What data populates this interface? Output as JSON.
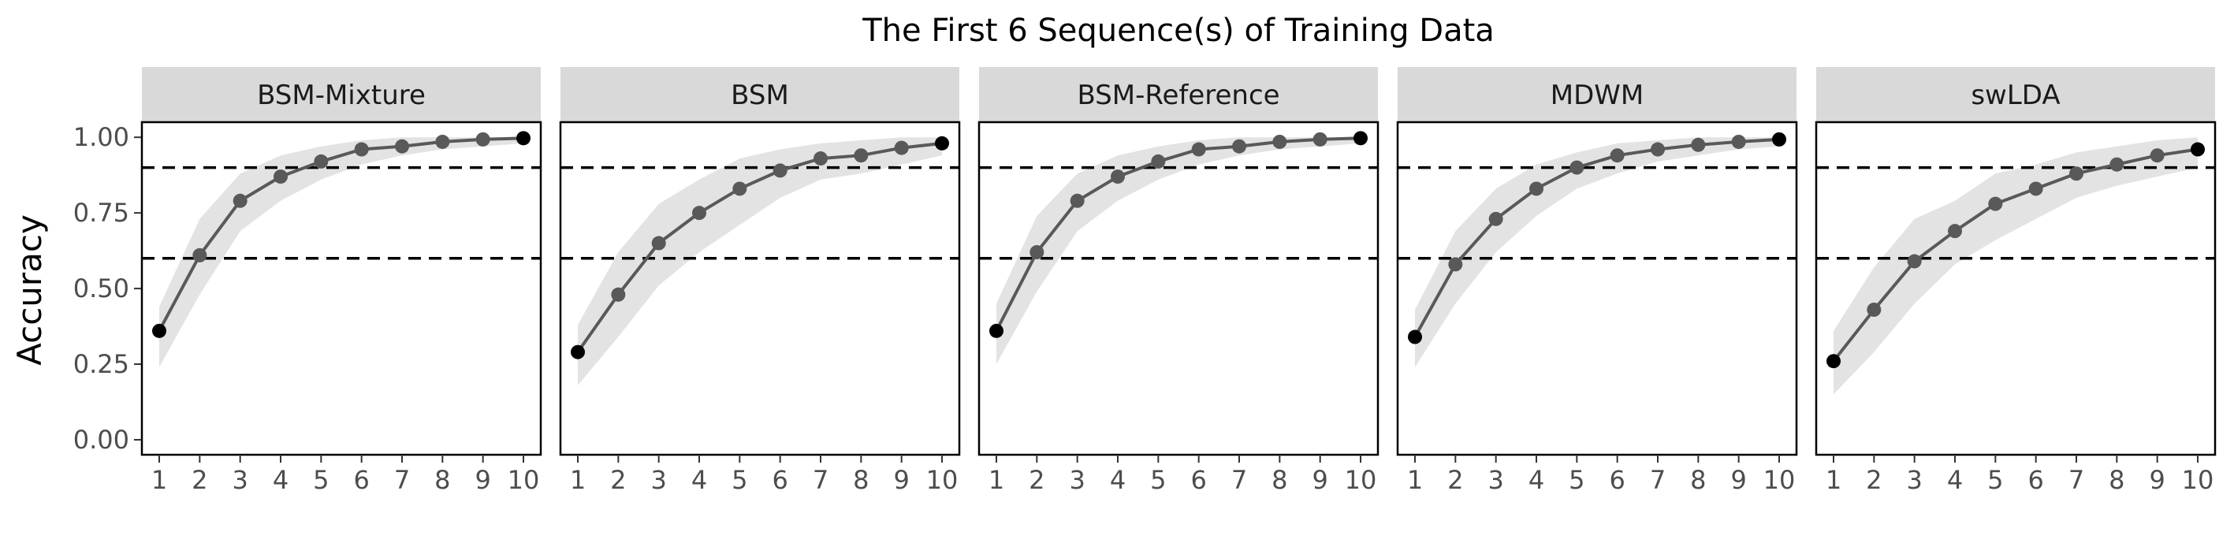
{
  "chart_data": {
    "type": "line",
    "title": "The First 6 Sequence(s) of Training Data",
    "ylabel": "Accuracy",
    "xlabel": "",
    "x": [
      1,
      2,
      3,
      4,
      5,
      6,
      7,
      8,
      9,
      10
    ],
    "ylim": [
      0,
      1.05
    ],
    "yticks": [
      0.0,
      0.25,
      0.5,
      0.75,
      1.0
    ],
    "ytick_labels": [
      "0.00",
      "0.25",
      "0.50",
      "0.75",
      "1.00"
    ],
    "reference_lines": [
      0.6,
      0.9
    ],
    "colors": {
      "line": "#595959",
      "band": "#e3e3e3",
      "strip": "#d9d9d9",
      "point_dark": "#000000"
    },
    "panels": [
      {
        "name": "BSM-Mixture",
        "y": [
          0.36,
          0.61,
          0.79,
          0.87,
          0.92,
          0.96,
          0.97,
          0.985,
          0.993,
          0.997
        ],
        "lower": [
          0.24,
          0.48,
          0.69,
          0.79,
          0.86,
          0.91,
          0.94,
          0.96,
          0.97,
          0.98
        ],
        "upper": [
          0.44,
          0.73,
          0.88,
          0.94,
          0.97,
          0.99,
          1.0,
          1.0,
          1.0,
          1.0
        ]
      },
      {
        "name": "BSM",
        "y": [
          0.29,
          0.48,
          0.65,
          0.75,
          0.83,
          0.89,
          0.93,
          0.94,
          0.965,
          0.98
        ],
        "lower": [
          0.18,
          0.34,
          0.51,
          0.62,
          0.71,
          0.8,
          0.86,
          0.88,
          0.91,
          0.94
        ],
        "upper": [
          0.38,
          0.62,
          0.78,
          0.86,
          0.93,
          0.96,
          0.98,
          0.99,
          1.0,
          1.0
        ]
      },
      {
        "name": "BSM-Reference",
        "y": [
          0.36,
          0.62,
          0.79,
          0.87,
          0.92,
          0.96,
          0.97,
          0.985,
          0.993,
          0.997
        ],
        "lower": [
          0.25,
          0.49,
          0.69,
          0.79,
          0.86,
          0.91,
          0.94,
          0.96,
          0.97,
          0.98
        ],
        "upper": [
          0.45,
          0.74,
          0.88,
          0.94,
          0.97,
          0.99,
          1.0,
          1.0,
          1.0,
          1.0
        ]
      },
      {
        "name": "MDWM",
        "y": [
          0.34,
          0.58,
          0.73,
          0.83,
          0.9,
          0.94,
          0.96,
          0.975,
          0.985,
          0.993
        ],
        "lower": [
          0.24,
          0.45,
          0.62,
          0.74,
          0.83,
          0.88,
          0.92,
          0.94,
          0.96,
          0.97
        ],
        "upper": [
          0.43,
          0.69,
          0.83,
          0.91,
          0.95,
          0.98,
          0.99,
          1.0,
          1.0,
          1.0
        ]
      },
      {
        "name": "swLDA",
        "y": [
          0.26,
          0.43,
          0.59,
          0.69,
          0.78,
          0.83,
          0.88,
          0.91,
          0.94,
          0.96
        ],
        "lower": [
          0.15,
          0.29,
          0.45,
          0.58,
          0.66,
          0.73,
          0.8,
          0.84,
          0.87,
          0.9
        ],
        "upper": [
          0.36,
          0.57,
          0.73,
          0.79,
          0.88,
          0.91,
          0.95,
          0.97,
          0.99,
          1.0
        ]
      }
    ]
  }
}
